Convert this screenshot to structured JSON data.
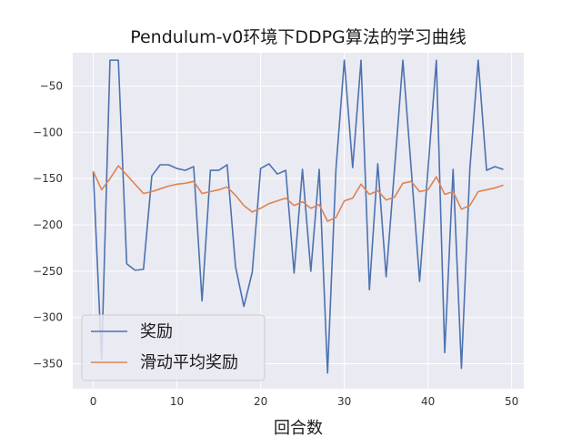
{
  "chart_data": {
    "type": "line",
    "title": "Pendulum-v0环境下DDPG算法的学习曲线",
    "xlabel": "回合数",
    "ylabel": "",
    "xlim": [
      -2.45,
      51.45
    ],
    "ylim": [
      -377,
      -14
    ],
    "xticks": [
      0,
      10,
      20,
      30,
      40,
      50
    ],
    "yticks": [
      -50,
      -100,
      -150,
      -200,
      -250,
      -300,
      -350
    ],
    "grid": true,
    "legend_position": "lower-left",
    "colors": {
      "background": "#eaeaf2",
      "grid": "#ffffff",
      "series_0": "#4c72b0",
      "series_1": "#dd8452"
    },
    "x": [
      0,
      1,
      2,
      3,
      4,
      5,
      6,
      7,
      8,
      9,
      10,
      11,
      12,
      13,
      14,
      15,
      16,
      17,
      18,
      19,
      20,
      21,
      22,
      23,
      24,
      25,
      26,
      27,
      28,
      29,
      30,
      31,
      32,
      33,
      34,
      35,
      36,
      37,
      38,
      39,
      40,
      41,
      42,
      43,
      44,
      45,
      46,
      47,
      48,
      49
    ],
    "series": [
      {
        "name": "奖励",
        "values": [
          -142,
          -345,
          -22,
          -22,
          -242,
          -249,
          -248,
          -147,
          -135,
          -135,
          -139,
          -141,
          -137,
          -282,
          -141,
          -141,
          -135,
          -245,
          -288,
          -251,
          -139,
          -134,
          -145,
          -141,
          -252,
          -140,
          -250,
          -140,
          -360,
          -140,
          -22,
          -138,
          -22,
          -270,
          -134,
          -256,
          -140,
          -22,
          -140,
          -261,
          -140,
          -22,
          -338,
          -140,
          -355,
          -140,
          -22,
          -141,
          -137,
          -140
        ]
      },
      {
        "name": "滑动平均奖励",
        "values": [
          -142,
          -162,
          -150,
          -136,
          -146,
          -156,
          -166,
          -164,
          -161,
          -158,
          -156,
          -155,
          -153,
          -166,
          -164,
          -162,
          -159,
          -168,
          -179,
          -186,
          -182,
          -177,
          -174,
          -171,
          -179,
          -175,
          -182,
          -178,
          -196,
          -192,
          -174,
          -171,
          -156,
          -167,
          -163,
          -173,
          -170,
          -155,
          -153,
          -164,
          -162,
          -148,
          -167,
          -164,
          -183,
          -179,
          -164,
          -162,
          -160,
          -157
        ]
      }
    ]
  }
}
